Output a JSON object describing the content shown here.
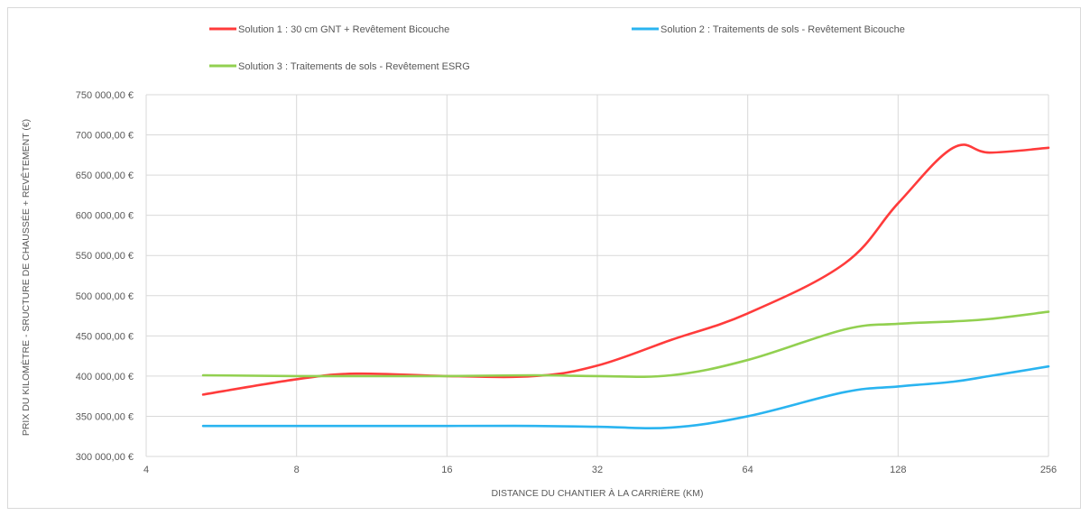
{
  "chart_data": {
    "type": "line",
    "xlabel": "DISTANCE DU CHANTIER À LA CARRIÈRE (KM)",
    "ylabel": "PRIX DU KILOMÈTRE - SRUCTURE DE CHAUSSÉE + REVÊTEMENT (€)",
    "x_scale": "log2",
    "xlim": [
      4,
      256
    ],
    "ylim": [
      300000,
      750000
    ],
    "x_ticks": [
      4,
      8,
      16,
      32,
      64,
      128,
      256
    ],
    "x_tick_labels": [
      "4",
      "8",
      "16",
      "32",
      "64",
      "128",
      "256"
    ],
    "y_ticks": [
      300000,
      350000,
      400000,
      450000,
      500000,
      550000,
      600000,
      650000,
      700000,
      750000
    ],
    "y_tick_labels": [
      "300 000,00 €",
      "350 000,00 €",
      "400 000,00 €",
      "450 000,00 €",
      "500 000,00 €",
      "550 000,00 €",
      "600 000,00 €",
      "650 000,00 €",
      "700 000,00 €",
      "750 000,00 €"
    ],
    "grid": true,
    "legend_position": "top",
    "series": [
      {
        "name": "Solution 1 : 30 cm GNT + Revêtement Bicouche",
        "color": "#ff3b3b",
        "x": [
          5.2,
          8,
          10.5,
          16,
          24,
          32,
          45,
          64,
          100,
          128,
          165,
          195,
          256
        ],
        "y": [
          377000,
          396000,
          403000,
          400000,
          400000,
          413000,
          445000,
          478000,
          540000,
          615000,
          684000,
          678000,
          684000
        ]
      },
      {
        "name": "Solution 2 : Traitements de sols - Revêtement Bicouche",
        "color": "#2ab4f0",
        "x": [
          5.2,
          8,
          16,
          24,
          32,
          45,
          64,
          100,
          128,
          165,
          195,
          256
        ],
        "y": [
          338000,
          338000,
          338000,
          338000,
          337000,
          336000,
          350000,
          380000,
          387000,
          393000,
          400000,
          412000
        ]
      },
      {
        "name": "Solution 3 : Traitements de sols - Revêtement ESRG",
        "color": "#92d050",
        "x": [
          5.2,
          8,
          16,
          24,
          32,
          45,
          64,
          100,
          128,
          165,
          195,
          256
        ],
        "y": [
          401000,
          400000,
          400000,
          401000,
          400000,
          401000,
          420000,
          458000,
          465000,
          468000,
          471000,
          480000
        ]
      }
    ]
  }
}
